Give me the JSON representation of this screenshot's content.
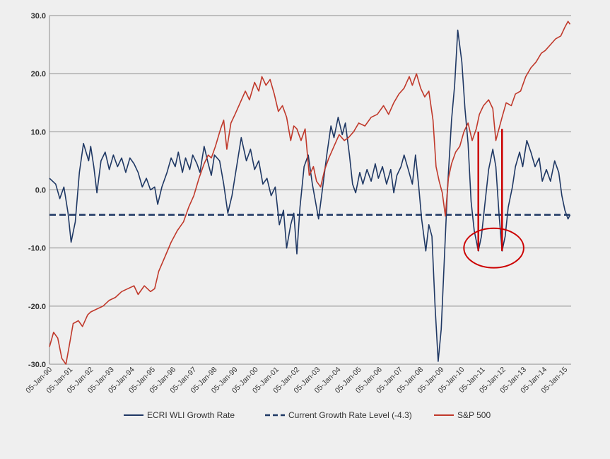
{
  "chart_data": {
    "type": "line",
    "title": "",
    "xlabel": "",
    "ylabel": "",
    "ylim": [
      -30,
      30
    ],
    "grid": true,
    "legend_position": "bottom",
    "yticks": [
      "30.0",
      "20.0",
      "10.0",
      "0.0",
      "-10.0",
      "-20.0",
      "-30.0"
    ],
    "xticks": [
      "05-Jan-90",
      "05-Jan-91",
      "05-Jan-92",
      "05-Jan-93",
      "05-Jan-94",
      "05-Jan-95",
      "05-Jan-96",
      "05-Jan-97",
      "05-Jan-98",
      "05-Jan-99",
      "05-Jan-00",
      "05-Jan-01",
      "05-Jan-02",
      "05-Jan-03",
      "05-Jan-04",
      "05-Jan-05",
      "05-Jan-06",
      "05-Jan-07",
      "05-Jan-08",
      "05-Jan-09",
      "05-Jan-10",
      "05-Jan-11",
      "05-Jan-12",
      "05-Jan-13",
      "05-Jan-14",
      "05-Jan-15"
    ],
    "series": [
      {
        "name": "ECRI WLI Growth Rate",
        "color": "#1f3864",
        "style": "solid",
        "points": [
          [
            1990.0,
            2.0
          ],
          [
            1990.3,
            1.0
          ],
          [
            1990.5,
            -1.5
          ],
          [
            1990.7,
            0.5
          ],
          [
            1990.9,
            -4.0
          ],
          [
            1991.05,
            -9.0
          ],
          [
            1991.25,
            -5.5
          ],
          [
            1991.45,
            3.0
          ],
          [
            1991.65,
            8.0
          ],
          [
            1991.9,
            5.0
          ],
          [
            1992.0,
            7.5
          ],
          [
            1992.15,
            4.0
          ],
          [
            1992.3,
            -0.5
          ],
          [
            1992.5,
            5.0
          ],
          [
            1992.7,
            6.5
          ],
          [
            1992.9,
            3.5
          ],
          [
            1993.1,
            6.0
          ],
          [
            1993.3,
            4.0
          ],
          [
            1993.5,
            5.5
          ],
          [
            1993.7,
            3.0
          ],
          [
            1993.9,
            5.5
          ],
          [
            1994.1,
            4.5
          ],
          [
            1994.3,
            3.0
          ],
          [
            1994.5,
            0.5
          ],
          [
            1994.7,
            2.0
          ],
          [
            1994.9,
            0.0
          ],
          [
            1995.1,
            0.5
          ],
          [
            1995.25,
            -2.5
          ],
          [
            1995.45,
            0.5
          ],
          [
            1995.7,
            3.0
          ],
          [
            1995.9,
            5.5
          ],
          [
            1996.1,
            4.0
          ],
          [
            1996.25,
            6.5
          ],
          [
            1996.45,
            3.0
          ],
          [
            1996.6,
            5.5
          ],
          [
            1996.8,
            3.5
          ],
          [
            1996.95,
            6.0
          ],
          [
            1997.15,
            4.5
          ],
          [
            1997.3,
            3.0
          ],
          [
            1997.5,
            7.5
          ],
          [
            1997.7,
            4.5
          ],
          [
            1997.85,
            2.5
          ],
          [
            1998.0,
            6.0
          ],
          [
            1998.25,
            5.0
          ],
          [
            1998.45,
            1.0
          ],
          [
            1998.65,
            -4.0
          ],
          [
            1998.85,
            -1.0
          ],
          [
            1999.1,
            4.5
          ],
          [
            1999.3,
            9.0
          ],
          [
            1999.55,
            5.0
          ],
          [
            1999.75,
            7.0
          ],
          [
            1999.95,
            3.5
          ],
          [
            2000.15,
            5.0
          ],
          [
            2000.35,
            1.0
          ],
          [
            2000.55,
            2.0
          ],
          [
            2000.75,
            -1.0
          ],
          [
            2000.95,
            0.5
          ],
          [
            2001.15,
            -6.0
          ],
          [
            2001.35,
            -3.5
          ],
          [
            2001.5,
            -10.0
          ],
          [
            2001.7,
            -6.0
          ],
          [
            2001.85,
            -4.0
          ],
          [
            2002.0,
            -11.0
          ],
          [
            2002.15,
            -3.0
          ],
          [
            2002.35,
            4.0
          ],
          [
            2002.55,
            6.0
          ],
          [
            2002.75,
            1.0
          ],
          [
            2002.9,
            -2.0
          ],
          [
            2003.05,
            -5.0
          ],
          [
            2003.2,
            -1.0
          ],
          [
            2003.45,
            6.0
          ],
          [
            2003.65,
            11.0
          ],
          [
            2003.8,
            9.0
          ],
          [
            2004.0,
            12.5
          ],
          [
            2004.2,
            9.5
          ],
          [
            2004.35,
            11.5
          ],
          [
            2004.55,
            6.0
          ],
          [
            2004.7,
            1.0
          ],
          [
            2004.85,
            -0.5
          ],
          [
            2005.05,
            3.0
          ],
          [
            2005.2,
            1.0
          ],
          [
            2005.4,
            3.5
          ],
          [
            2005.6,
            1.5
          ],
          [
            2005.8,
            4.5
          ],
          [
            2005.95,
            2.0
          ],
          [
            2006.15,
            4.0
          ],
          [
            2006.35,
            1.0
          ],
          [
            2006.55,
            3.5
          ],
          [
            2006.7,
            -0.5
          ],
          [
            2006.85,
            2.5
          ],
          [
            2007.05,
            4.0
          ],
          [
            2007.2,
            6.0
          ],
          [
            2007.4,
            3.5
          ],
          [
            2007.6,
            1.0
          ],
          [
            2007.75,
            6.0
          ],
          [
            2007.9,
            1.0
          ],
          [
            2008.05,
            -5.0
          ],
          [
            2008.25,
            -10.5
          ],
          [
            2008.4,
            -6.0
          ],
          [
            2008.55,
            -8.0
          ],
          [
            2008.7,
            -20.0
          ],
          [
            2008.85,
            -29.5
          ],
          [
            2009.0,
            -24.0
          ],
          [
            2009.15,
            -12.0
          ],
          [
            2009.3,
            0.0
          ],
          [
            2009.5,
            12.0
          ],
          [
            2009.65,
            18.0
          ],
          [
            2009.8,
            27.5
          ],
          [
            2010.0,
            22.0
          ],
          [
            2010.15,
            14.0
          ],
          [
            2010.3,
            8.0
          ],
          [
            2010.45,
            -2.0
          ],
          [
            2010.6,
            -7.0
          ],
          [
            2010.8,
            -10.5
          ],
          [
            2010.95,
            -8.0
          ],
          [
            2011.1,
            -3.0
          ],
          [
            2011.3,
            3.5
          ],
          [
            2011.5,
            7.0
          ],
          [
            2011.65,
            4.0
          ],
          [
            2011.8,
            -4.0
          ],
          [
            2011.95,
            -10.5
          ],
          [
            2012.1,
            -8.0
          ],
          [
            2012.25,
            -3.0
          ],
          [
            2012.45,
            0.5
          ],
          [
            2012.6,
            4.0
          ],
          [
            2012.8,
            6.5
          ],
          [
            2012.95,
            4.0
          ],
          [
            2013.15,
            8.5
          ],
          [
            2013.35,
            6.5
          ],
          [
            2013.55,
            4.0
          ],
          [
            2013.75,
            5.5
          ],
          [
            2013.9,
            1.5
          ],
          [
            2014.1,
            3.5
          ],
          [
            2014.3,
            1.5
          ],
          [
            2014.5,
            5.0
          ],
          [
            2014.7,
            3.0
          ],
          [
            2014.85,
            -1.0
          ],
          [
            2015.0,
            -3.5
          ],
          [
            2015.15,
            -5.0
          ],
          [
            2015.25,
            -4.3
          ]
        ]
      },
      {
        "name": "Current Growth Rate Level (-4.3)",
        "color": "#1f3864",
        "style": "dashed",
        "points": [
          [
            1990.0,
            -4.3
          ],
          [
            2015.25,
            -4.3
          ]
        ]
      },
      {
        "name": "S&P 500",
        "color": "#c0392b",
        "style": "solid",
        "points": [
          [
            1990.0,
            -27.0
          ],
          [
            1990.2,
            -24.5
          ],
          [
            1990.4,
            -25.5
          ],
          [
            1990.6,
            -29.0
          ],
          [
            1990.8,
            -30.0
          ],
          [
            1990.95,
            -27.0
          ],
          [
            1991.15,
            -23.0
          ],
          [
            1991.4,
            -22.5
          ],
          [
            1991.6,
            -23.5
          ],
          [
            1991.85,
            -21.5
          ],
          [
            1992.0,
            -21.0
          ],
          [
            1992.3,
            -20.5
          ],
          [
            1992.6,
            -20.0
          ],
          [
            1992.9,
            -19.0
          ],
          [
            1993.2,
            -18.5
          ],
          [
            1993.5,
            -17.5
          ],
          [
            1993.8,
            -17.0
          ],
          [
            1994.1,
            -16.5
          ],
          [
            1994.3,
            -18.0
          ],
          [
            1994.6,
            -16.5
          ],
          [
            1994.9,
            -17.5
          ],
          [
            1995.1,
            -17.0
          ],
          [
            1995.3,
            -14.0
          ],
          [
            1995.6,
            -11.5
          ],
          [
            1995.9,
            -9.0
          ],
          [
            1996.2,
            -7.0
          ],
          [
            1996.5,
            -5.5
          ],
          [
            1996.75,
            -3.0
          ],
          [
            1997.0,
            -1.0
          ],
          [
            1997.25,
            2.0
          ],
          [
            1997.5,
            4.5
          ],
          [
            1997.7,
            6.0
          ],
          [
            1997.85,
            5.5
          ],
          [
            1998.05,
            7.5
          ],
          [
            1998.3,
            10.5
          ],
          [
            1998.45,
            12.0
          ],
          [
            1998.6,
            7.0
          ],
          [
            1998.8,
            11.5
          ],
          [
            1999.0,
            13.0
          ],
          [
            1999.25,
            15.0
          ],
          [
            1999.5,
            17.0
          ],
          [
            1999.7,
            15.5
          ],
          [
            1999.95,
            18.5
          ],
          [
            2000.15,
            17.0
          ],
          [
            2000.3,
            19.5
          ],
          [
            2000.5,
            18.0
          ],
          [
            2000.7,
            19.0
          ],
          [
            2000.9,
            16.5
          ],
          [
            2001.1,
            13.5
          ],
          [
            2001.3,
            14.5
          ],
          [
            2001.5,
            12.5
          ],
          [
            2001.7,
            8.5
          ],
          [
            2001.85,
            11.0
          ],
          [
            2002.0,
            10.5
          ],
          [
            2002.2,
            8.5
          ],
          [
            2002.4,
            10.5
          ],
          [
            2002.6,
            2.5
          ],
          [
            2002.8,
            4.0
          ],
          [
            2002.95,
            1.5
          ],
          [
            2003.15,
            0.5
          ],
          [
            2003.35,
            3.5
          ],
          [
            2003.55,
            5.5
          ],
          [
            2003.8,
            7.5
          ],
          [
            2004.05,
            9.5
          ],
          [
            2004.3,
            8.5
          ],
          [
            2004.5,
            9.0
          ],
          [
            2004.75,
            10.0
          ],
          [
            2005.0,
            11.5
          ],
          [
            2005.3,
            11.0
          ],
          [
            2005.6,
            12.5
          ],
          [
            2005.9,
            13.0
          ],
          [
            2006.2,
            14.5
          ],
          [
            2006.45,
            13.0
          ],
          [
            2006.7,
            15.0
          ],
          [
            2006.95,
            16.5
          ],
          [
            2007.2,
            17.5
          ],
          [
            2007.45,
            19.5
          ],
          [
            2007.6,
            18.0
          ],
          [
            2007.8,
            20.0
          ],
          [
            2008.0,
            17.5
          ],
          [
            2008.2,
            16.0
          ],
          [
            2008.4,
            17.0
          ],
          [
            2008.6,
            12.0
          ],
          [
            2008.75,
            4.0
          ],
          [
            2008.9,
            1.5
          ],
          [
            2009.05,
            -0.5
          ],
          [
            2009.2,
            -4.5
          ],
          [
            2009.35,
            2.0
          ],
          [
            2009.5,
            4.5
          ],
          [
            2009.7,
            6.5
          ],
          [
            2009.9,
            7.5
          ],
          [
            2010.1,
            10.0
          ],
          [
            2010.3,
            11.5
          ],
          [
            2010.5,
            8.5
          ],
          [
            2010.7,
            10.5
          ],
          [
            2010.85,
            13.0
          ],
          [
            2011.05,
            14.5
          ],
          [
            2011.3,
            15.5
          ],
          [
            2011.5,
            14.0
          ],
          [
            2011.65,
            8.5
          ],
          [
            2011.8,
            10.5
          ],
          [
            2011.95,
            12.5
          ],
          [
            2012.15,
            15.0
          ],
          [
            2012.4,
            14.5
          ],
          [
            2012.6,
            16.5
          ],
          [
            2012.85,
            17.0
          ],
          [
            2013.1,
            19.5
          ],
          [
            2013.35,
            21.0
          ],
          [
            2013.6,
            22.0
          ],
          [
            2013.85,
            23.5
          ],
          [
            2014.05,
            24.0
          ],
          [
            2014.3,
            25.0
          ],
          [
            2014.55,
            26.0
          ],
          [
            2014.8,
            26.5
          ],
          [
            2015.0,
            28.0
          ],
          [
            2015.15,
            29.0
          ],
          [
            2015.25,
            28.5
          ]
        ]
      }
    ],
    "annotations": [
      {
        "type": "vertical-line",
        "color": "#cc0000",
        "x": 2010.8,
        "y_from": 10.0,
        "y_to": -10.5
      },
      {
        "type": "vertical-line",
        "color": "#cc0000",
        "x": 2011.95,
        "y_from": 10.5,
        "y_to": -10.5
      },
      {
        "type": "ellipse",
        "color": "#cc0000",
        "cx": 2011.55,
        "cy": -10.0,
        "rx_years": 1.45,
        "ry_units": 3.4
      }
    ]
  },
  "legend": {
    "items": [
      {
        "label": "ECRI WLI Growth Rate",
        "style": "solid",
        "color": "#1f3864"
      },
      {
        "label": "Current Growth Rate Level (-4.3)",
        "style": "dashed",
        "color": "#1f3864"
      },
      {
        "label": "S&P 500",
        "style": "solid",
        "color": "#c0392b"
      }
    ]
  }
}
